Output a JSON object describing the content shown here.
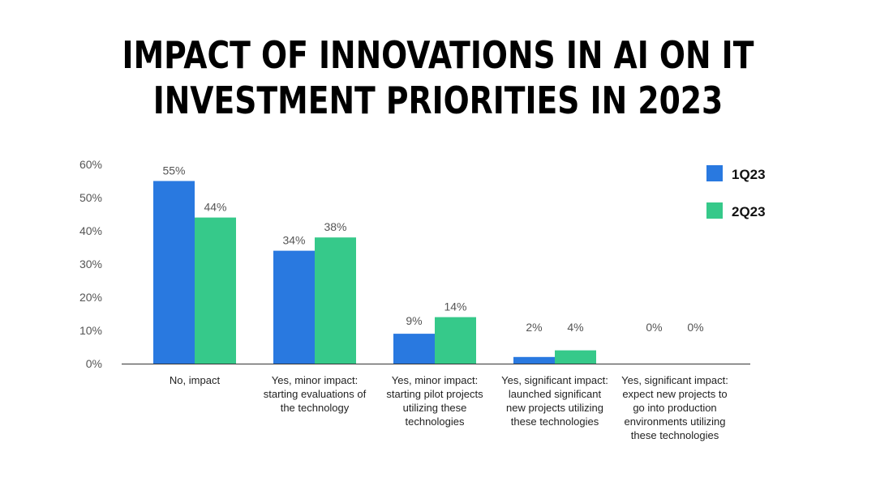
{
  "chart_data": {
    "type": "bar",
    "title_lines": [
      "IMPACT OF INNOVATIONS IN AI ON IT",
      "INVESTMENT PRIORITIES IN 2023"
    ],
    "categories": [
      [
        "No, impact"
      ],
      [
        "Yes, minor impact:",
        "starting evaluations of",
        "the technology"
      ],
      [
        "Yes, minor impact:",
        "starting pilot projects",
        "utilizing these",
        "technologies"
      ],
      [
        "Yes, significant impact:",
        "launched significant",
        "new projects utilizing",
        "these technologies"
      ],
      [
        "Yes, significant impact:",
        "expect new projects to",
        "go into production",
        "environments utilizing",
        "these technologies"
      ]
    ],
    "series": [
      {
        "name": "1Q23",
        "color": "#2979E0",
        "values": [
          55,
          34,
          9,
          2,
          0
        ],
        "labels": [
          "55%",
          "34%",
          "9%",
          "2%",
          "0%"
        ]
      },
      {
        "name": "2Q23",
        "color": "#36C98A",
        "values": [
          44,
          38,
          14,
          4,
          0
        ],
        "labels": [
          "44%",
          "38%",
          "14%",
          "4%",
          "0%"
        ]
      }
    ],
    "ylim": [
      0,
      60
    ],
    "yticks": [
      {
        "value": 0,
        "label": "0%"
      },
      {
        "value": 10,
        "label": "10%"
      },
      {
        "value": 20,
        "label": "20%"
      },
      {
        "value": 30,
        "label": "30%"
      },
      {
        "value": 40,
        "label": "40%"
      },
      {
        "value": 50,
        "label": "50%"
      },
      {
        "value": 60,
        "label": "60%"
      }
    ],
    "grid": false,
    "legend_position": "top-right"
  }
}
